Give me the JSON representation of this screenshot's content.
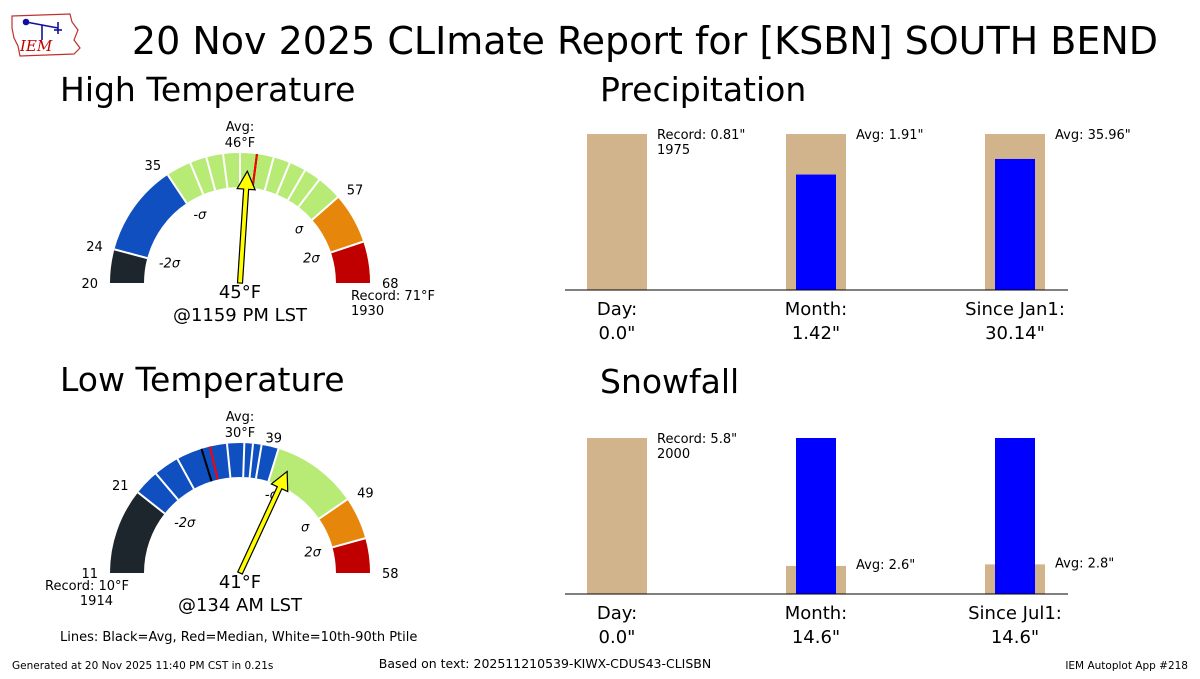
{
  "header": {
    "logo_text": "IEM",
    "title": "20 Nov 2025 CLImate Report for [KSBN] SOUTH BEND"
  },
  "footer": {
    "generated": "Generated at 20 Nov 2025 11:40 PM CST in 0.21s",
    "based_on": "Based on text: 202511210539-KIWX-CDUS43-CLISBN",
    "app": "IEM Autoplot App #218"
  },
  "colors": {
    "below_2sigma": "#1c262c",
    "below_sigma": "#0f4fbf",
    "normal": "#b8ea76",
    "above_sigma": "#e6870b",
    "above_2sigma": "#c00000",
    "needle": "#ffff00",
    "bar_avg": "#d2b48c",
    "bar_obs": "#0000ff",
    "median_line": "#ff0000",
    "avg_line": "#000000"
  },
  "chart_data": [
    {
      "type": "gauge",
      "title": "High Temperature",
      "min": 20,
      "max": 68,
      "sigma_ticks": [
        20,
        24,
        35,
        57,
        68
      ],
      "sigma_labels": [
        "-2σ",
        "-σ",
        "σ",
        "2σ"
      ],
      "avg": 46,
      "median": 46,
      "avg_label": "Avg:",
      "avg_value_label": "46°F",
      "percentile_lines": [
        38,
        40,
        42,
        44,
        48,
        50,
        52,
        54
      ],
      "observed": 45,
      "observed_label": "45°F",
      "time_label": "@1159 PM LST",
      "record_label": "Record: 71°F",
      "record_year": "1930"
    },
    {
      "type": "gauge",
      "title": "Low Temperature",
      "min": 11,
      "max": 58,
      "sigma_ticks": [
        11,
        21,
        39,
        49,
        58
      ],
      "sigma_labels": [
        "-2σ",
        "-σ",
        "σ",
        "2σ"
      ],
      "avg": 30,
      "median": 31,
      "avg_label": "Avg:",
      "avg_value_label": "30°F",
      "percentile_lines": [
        24,
        27,
        33,
        35,
        36,
        37
      ],
      "observed": 41,
      "observed_label": "41°F",
      "time_label": "@134 AM LST",
      "record_label": "Record: 10°F",
      "record_year": "1914"
    },
    {
      "type": "bar",
      "title": "Precipitation",
      "ylim": [
        0,
        1
      ],
      "categories": [
        {
          "name": "Day:",
          "value_label": "0.0\"",
          "avg": 1,
          "obs": 0,
          "annot1": "Record: 0.81\"",
          "annot2": "1975"
        },
        {
          "name": "Month:",
          "value_label": "1.42\"",
          "avg": 1,
          "obs": 0.74,
          "annot1": "Avg: 1.91\"",
          "annot2": ""
        },
        {
          "name": "Since Jan1:",
          "value_label": "30.14\"",
          "avg": 1,
          "obs": 0.84,
          "annot1": "Avg: 35.96\"",
          "annot2": ""
        }
      ]
    },
    {
      "type": "bar",
      "title": "Snowfall",
      "ylim": [
        0,
        1
      ],
      "categories": [
        {
          "name": "Day:",
          "value_label": "0.0\"",
          "avg": 1,
          "obs": 0,
          "annot1": "Record: 5.8\"",
          "annot2": "2000"
        },
        {
          "name": "Month:",
          "value_label": "14.6\"",
          "avg": 0.18,
          "obs": 1,
          "annot1": "Avg: 2.6\"",
          "annot2": ""
        },
        {
          "name": "Since Jul1:",
          "value_label": "14.6\"",
          "avg": 0.19,
          "obs": 1,
          "annot1": "Avg: 2.8\"",
          "annot2": ""
        }
      ]
    }
  ],
  "legend_note": "Lines: Black=Avg, Red=Median, White=10th-90th Ptile"
}
